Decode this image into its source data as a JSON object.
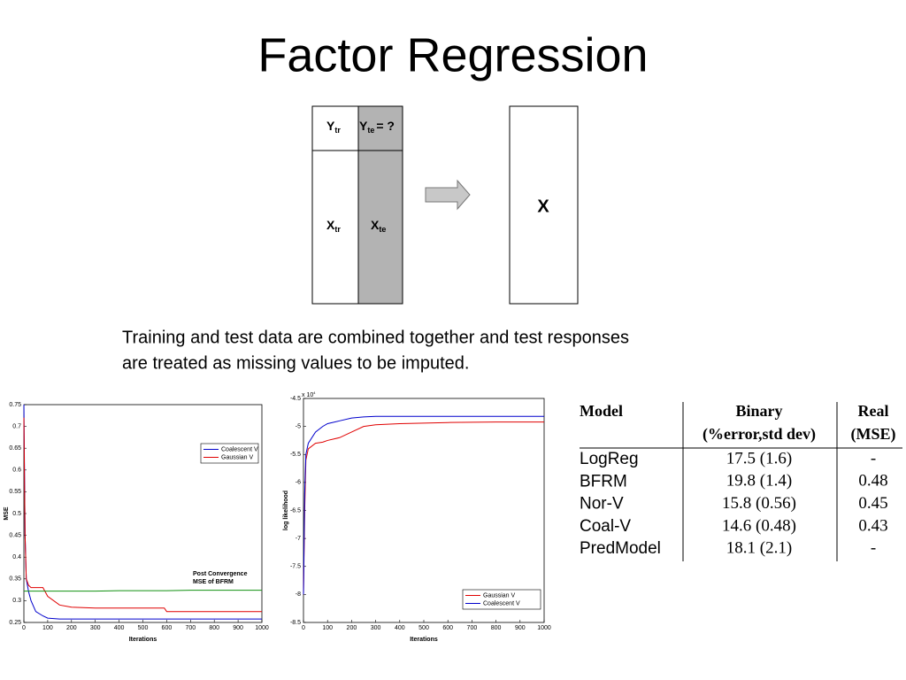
{
  "title": "Factor Regression",
  "diagram": {
    "y_train": {
      "main": "Y",
      "sub": "tr"
    },
    "y_test": {
      "main": "Y",
      "sub": "te",
      "suffix": "= ?"
    },
    "x_train": {
      "main": "X",
      "sub": "tr"
    },
    "x_test": {
      "main": "X",
      "sub": "te"
    },
    "combined": "X"
  },
  "caption": [
    "Training and test data are combined together and test responses",
    "are treated as missing values to be imputed."
  ],
  "chart_data": [
    {
      "type": "line",
      "xlabel": "Iterations",
      "ylabel": "MSE",
      "x": [
        0,
        5,
        10,
        20,
        30,
        50,
        80,
        100,
        150,
        200,
        300,
        400,
        500,
        590,
        600,
        700,
        800,
        900,
        1000
      ],
      "series": [
        {
          "name": "Coalescent V",
          "color": "#0000cc",
          "values": [
            0.75,
            0.45,
            0.35,
            0.32,
            0.3,
            0.275,
            0.265,
            0.26,
            0.258,
            0.258,
            0.258,
            0.258,
            0.258,
            0.258,
            0.258,
            0.258,
            0.258,
            0.258,
            0.258
          ]
        },
        {
          "name": "Gaussian V",
          "color": "#e00000",
          "values": [
            0.72,
            0.45,
            0.35,
            0.335,
            0.33,
            0.33,
            0.33,
            0.31,
            0.29,
            0.285,
            0.283,
            0.283,
            0.283,
            0.283,
            0.275,
            0.275,
            0.275,
            0.275,
            0.275
          ]
        },
        {
          "color": "#109010",
          "values": [
            0.322,
            0.322,
            0.322,
            0.322,
            0.322,
            0.322,
            0.322,
            0.322,
            0.322,
            0.322,
            0.322,
            0.323,
            0.323,
            0.323,
            0.323,
            0.324,
            0.324,
            0.324,
            0.324
          ]
        }
      ],
      "annotation": [
        "Post Convergence",
        "MSE of BFRM"
      ],
      "xlim": [
        0,
        1000
      ],
      "xticks": [
        0,
        100,
        200,
        300,
        400,
        500,
        600,
        700,
        800,
        900,
        1000
      ],
      "ylim": [
        0.25,
        0.75
      ],
      "yticks": [
        0.25,
        0.3,
        0.35,
        0.4,
        0.45,
        0.5,
        0.55,
        0.6,
        0.65,
        0.7,
        0.75
      ],
      "legend": "upper right"
    },
    {
      "type": "line",
      "xlabel": "Iterations",
      "ylabel": "log likelihood",
      "axis_scale": {
        "text": "x 10",
        "exponent": "4"
      },
      "x": [
        0,
        5,
        10,
        20,
        50,
        80,
        100,
        150,
        200,
        250,
        300,
        400,
        500,
        600,
        800,
        1000
      ],
      "series": [
        {
          "name": "Gaussian V",
          "color": "#e00000",
          "values": [
            -8,
            -6.5,
            -5.6,
            -5.4,
            -5.3,
            -5.28,
            -5.25,
            -5.2,
            -5.1,
            -5.0,
            -4.97,
            -4.95,
            -4.94,
            -4.93,
            -4.92,
            -4.92
          ]
        },
        {
          "name": "Coalescent V",
          "color": "#0000cc",
          "values": [
            -8,
            -6.2,
            -5.5,
            -5.3,
            -5.1,
            -5.0,
            -4.95,
            -4.9,
            -4.85,
            -4.83,
            -4.82,
            -4.82,
            -4.82,
            -4.82,
            -4.82,
            -4.82
          ]
        }
      ],
      "xlim": [
        0,
        1000
      ],
      "xticks": [
        0,
        100,
        200,
        300,
        400,
        500,
        600,
        700,
        800,
        900,
        1000
      ],
      "ylim": [
        -8.5,
        -4.5
      ],
      "yticks": [
        -8.5,
        -8,
        -7.5,
        -7,
        -6.5,
        -6,
        -5.5,
        -5,
        -4.5
      ],
      "legend": "lower right"
    }
  ],
  "table": {
    "header": [
      "Model",
      "Binary",
      "Real"
    ],
    "header_sub": [
      "(%error,std dev)",
      "(MSE)"
    ],
    "rows": [
      [
        "LogReg",
        "17.5 (1.6)",
        "-"
      ],
      [
        "BFRM",
        "19.8 (1.4)",
        "0.48"
      ],
      [
        "Nor-V",
        "15.8 (0.56)",
        "0.45"
      ],
      [
        "Coal-V",
        "14.6 (0.48)",
        "0.43"
      ],
      [
        "PredModel",
        "18.1 (2.1)",
        "-"
      ]
    ]
  }
}
